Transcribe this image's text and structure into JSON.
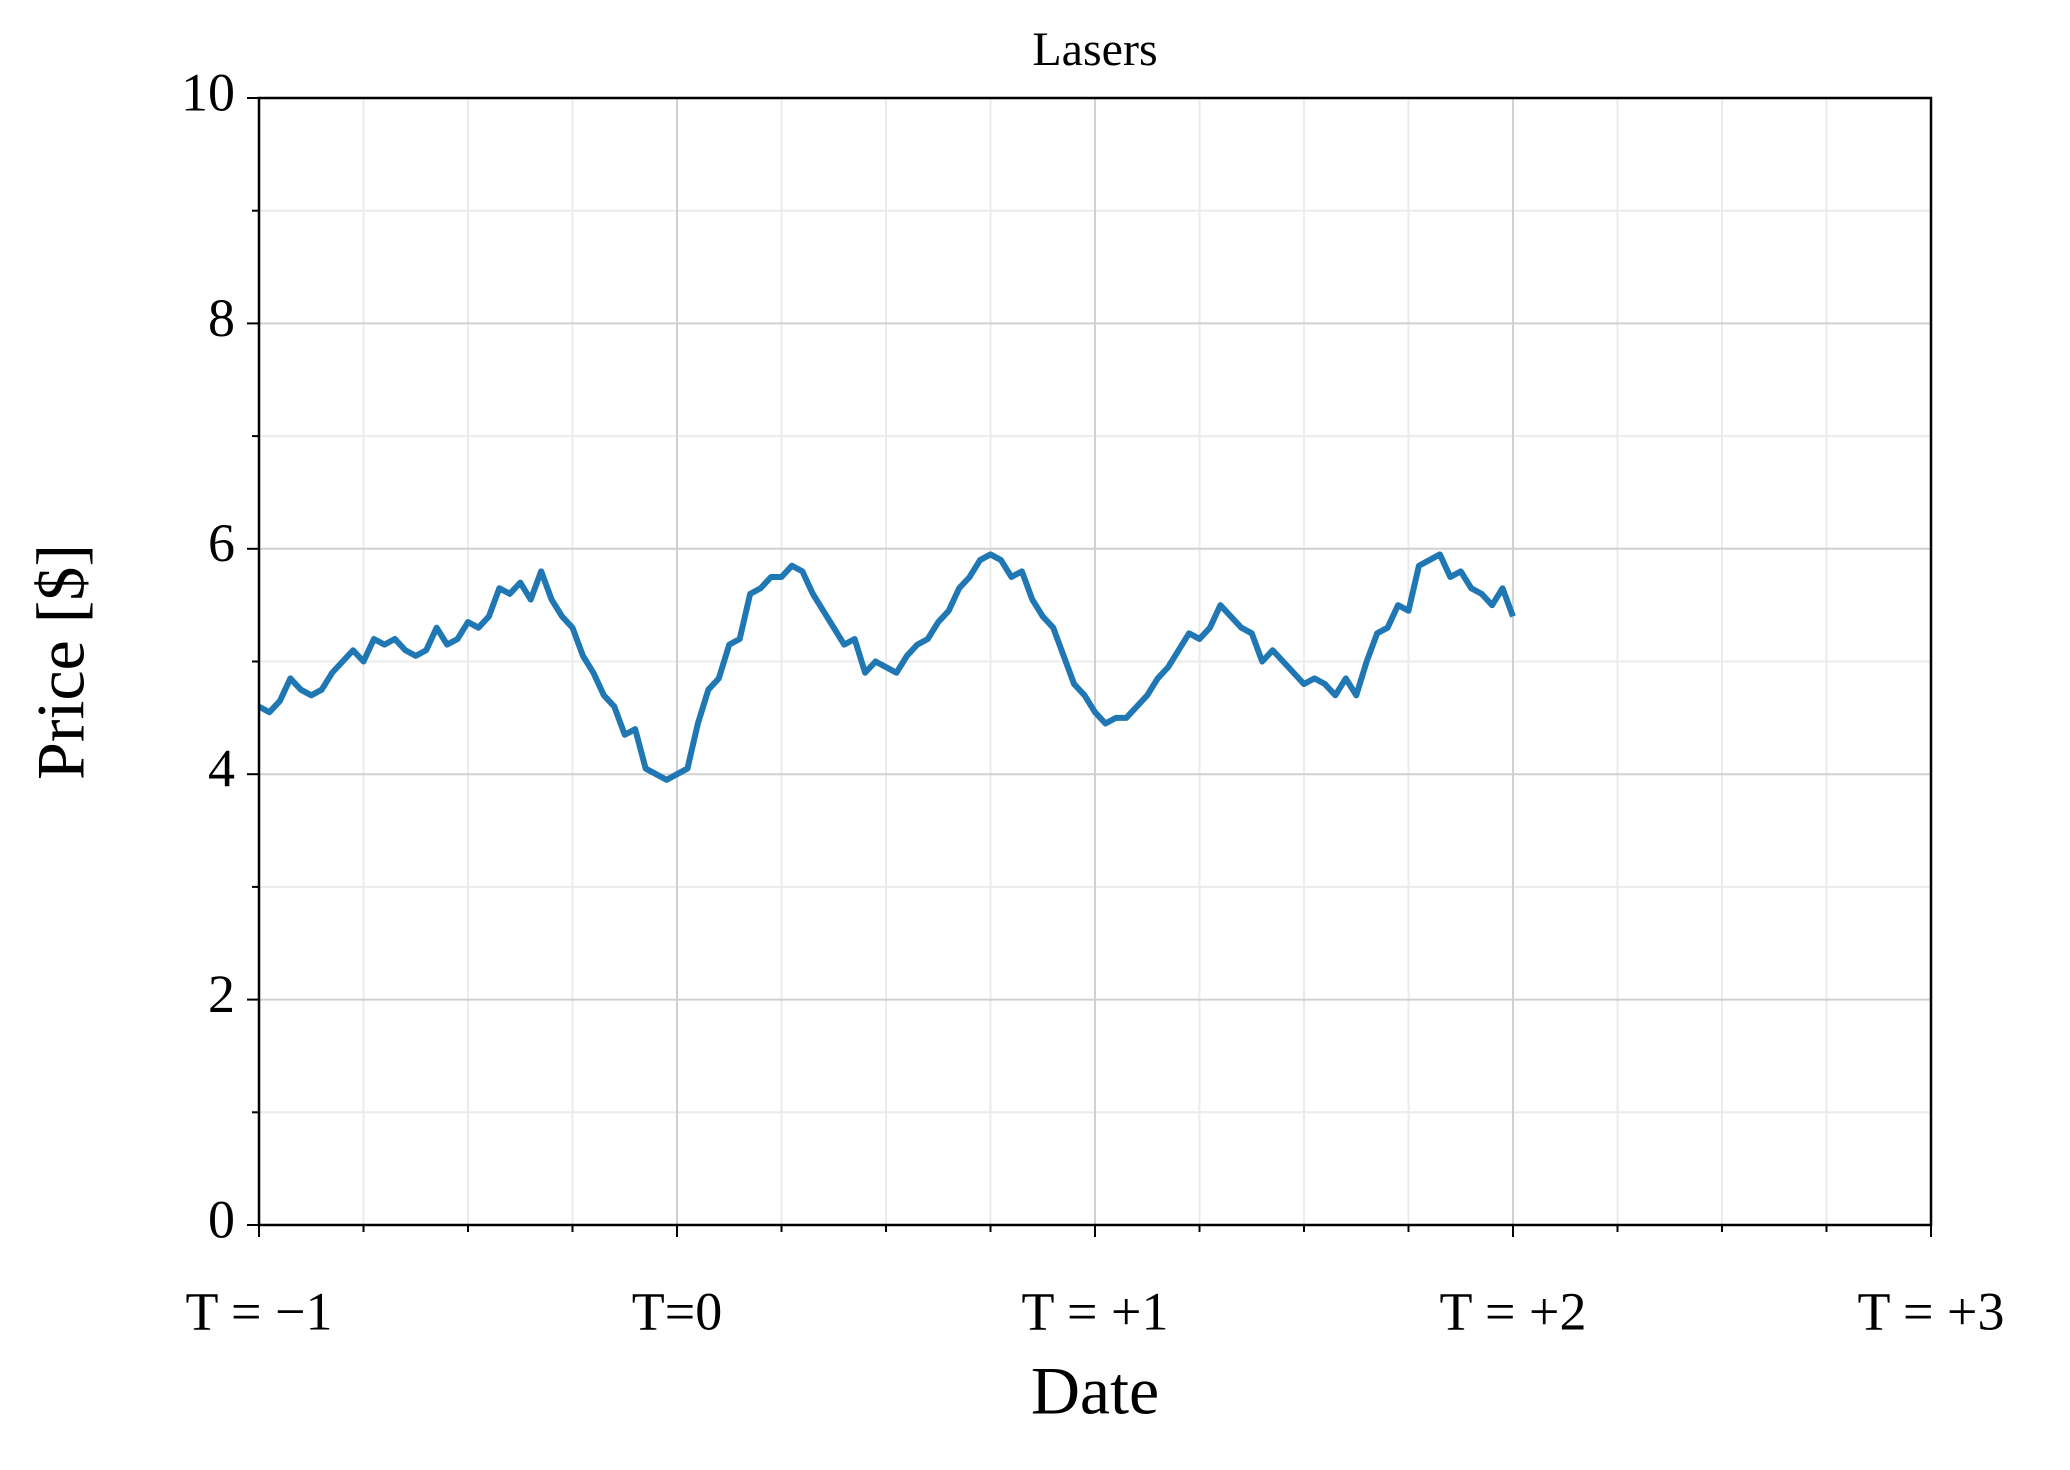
{
  "chart_data": {
    "type": "line",
    "title": "Lasers",
    "x_label": "Date",
    "y_label": "Price [$]",
    "color": "#1f77b4",
    "grid": true,
    "x": [
      -1,
      -0.975,
      -0.95,
      -0.925,
      -0.9,
      -0.875,
      -0.85,
      -0.825,
      -0.8,
      -0.775,
      -0.75,
      -0.725,
      -0.7,
      -0.675,
      -0.65,
      -0.625,
      -0.6,
      -0.575,
      -0.55,
      -0.525,
      -0.5,
      -0.475,
      -0.45,
      -0.425,
      -0.4,
      -0.375,
      -0.35,
      -0.325,
      -0.3,
      -0.275,
      -0.25,
      -0.225,
      -0.2,
      -0.175,
      -0.15,
      -0.125,
      -0.1,
      -0.075,
      -0.05,
      -0.025,
      0,
      0.025,
      0.05,
      0.075,
      0.1,
      0.125,
      0.15,
      0.175,
      0.2,
      0.225,
      0.25,
      0.275,
      0.3,
      0.325,
      0.35,
      0.375,
      0.4,
      0.425,
      0.45,
      0.475,
      0.5,
      0.525,
      0.55,
      0.575,
      0.6,
      0.625,
      0.65,
      0.675,
      0.7,
      0.725,
      0.75,
      0.775,
      0.8,
      0.825,
      0.85,
      0.875,
      0.9,
      0.925,
      0.95,
      0.975,
      1,
      1.025,
      1.05,
      1.075,
      1.1,
      1.125,
      1.15,
      1.175,
      1.2,
      1.225,
      1.25,
      1.275,
      1.3,
      1.325,
      1.35,
      1.375,
      1.4,
      1.425,
      1.45,
      1.475,
      1.5,
      1.525,
      1.55,
      1.575,
      1.6,
      1.625,
      1.65,
      1.675,
      1.7,
      1.725,
      1.75,
      1.775,
      1.8,
      1.825,
      1.85,
      1.875,
      1.9,
      1.925,
      1.95,
      1.975,
      2
    ],
    "values": [
      4.6,
      4.55,
      4.65,
      4.85,
      4.75,
      4.7,
      4.75,
      4.9,
      5.0,
      5.1,
      5.0,
      5.2,
      5.15,
      5.2,
      5.1,
      5.05,
      5.1,
      5.3,
      5.15,
      5.2,
      5.35,
      5.3,
      5.4,
      5.65,
      5.6,
      5.7,
      5.55,
      5.8,
      5.55,
      5.4,
      5.3,
      5.05,
      4.9,
      4.7,
      4.6,
      4.35,
      4.4,
      4.05,
      4.0,
      3.95,
      4.0,
      4.05,
      4.45,
      4.75,
      4.85,
      5.15,
      5.2,
      5.6,
      5.65,
      5.75,
      5.75,
      5.85,
      5.8,
      5.6,
      5.45,
      5.3,
      5.15,
      5.2,
      4.9,
      5.0,
      4.95,
      4.9,
      5.05,
      5.15,
      5.2,
      5.35,
      5.45,
      5.65,
      5.75,
      5.9,
      5.95,
      5.9,
      5.75,
      5.8,
      5.55,
      5.4,
      5.3,
      5.05,
      4.8,
      4.7,
      4.55,
      4.45,
      4.5,
      4.5,
      4.6,
      4.7,
      4.85,
      4.95,
      5.1,
      5.25,
      5.2,
      5.3,
      5.5,
      5.4,
      5.3,
      5.25,
      5.0,
      5.1,
      5.0,
      4.9,
      4.8,
      4.85,
      4.8,
      4.7,
      4.85,
      4.7,
      5.0,
      5.25,
      5.3,
      5.5,
      5.45,
      5.85,
      5.9,
      5.95,
      5.75,
      5.8,
      5.65,
      5.6,
      5.5,
      5.65,
      5.4
    ],
    "xlim": [
      -1,
      3
    ],
    "xticks": [
      {
        "value": -1,
        "label": "T = −1"
      },
      {
        "value": 0,
        "label": "T=0"
      },
      {
        "value": 1,
        "label": "T = +1"
      },
      {
        "value": 2,
        "label": "T = +2"
      },
      {
        "value": 3,
        "label": "T = +3"
      }
    ],
    "xminor_ticks": [
      -0.75,
      -0.5,
      -0.25,
      0.25,
      0.5,
      0.75,
      1.25,
      1.5,
      1.75,
      2.25,
      2.5,
      2.75
    ],
    "ylim": [
      0,
      10
    ],
    "yticks": [
      0,
      2,
      4,
      6,
      8,
      10
    ],
    "yminor_ticks": [
      1,
      3,
      5,
      7,
      9
    ]
  }
}
